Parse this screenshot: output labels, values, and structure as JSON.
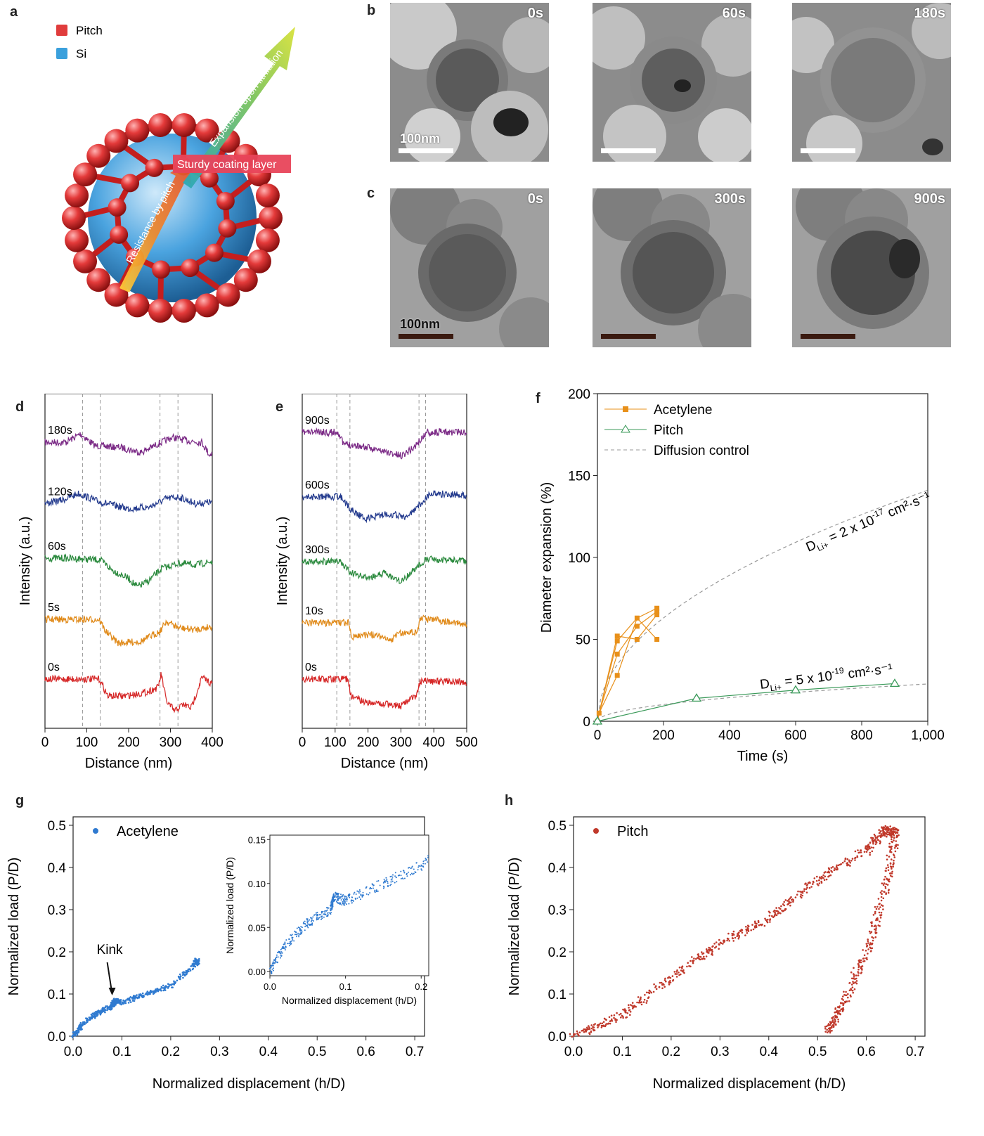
{
  "panels": {
    "a": {
      "letter": "a",
      "legend": [
        {
          "label": "Pitch",
          "color": "#e03c3c"
        },
        {
          "label": "Si",
          "color": "#3aa0dc"
        }
      ],
      "arrow_up_text": "Expansion upon lithiation",
      "coating_text": "Sturdy coating layer",
      "arrow_down_text": "Resistance by pitch"
    },
    "b": {
      "letter": "b",
      "times": [
        "0s",
        "60s",
        "180s"
      ],
      "scale_label": "100nm"
    },
    "c": {
      "letter": "c",
      "times": [
        "0s",
        "300s",
        "900s"
      ],
      "scale_label": "100nm"
    },
    "d": {
      "letter": "d"
    },
    "e": {
      "letter": "e"
    },
    "f": {
      "letter": "f"
    },
    "g": {
      "letter": "g"
    },
    "h": {
      "letter": "h"
    }
  },
  "chart_data": [
    {
      "id": "d",
      "type": "line",
      "xlabel": "Distance (nm)",
      "ylabel": "Intensity (a.u.)",
      "xlim": [
        0,
        400
      ],
      "xticks": [
        "0",
        "100",
        "200",
        "300",
        "400"
      ],
      "dashed_x": [
        90,
        132,
        275,
        318
      ],
      "series": [
        {
          "name": "180s",
          "color": "#7b2a86",
          "points": [
            [
              0,
              1.0
            ],
            [
              50,
              1.0
            ],
            [
              85,
              1.25
            ],
            [
              120,
              0.9
            ],
            [
              180,
              0.85
            ],
            [
              230,
              0.7
            ],
            [
              270,
              0.95
            ],
            [
              305,
              1.15
            ],
            [
              340,
              1.05
            ],
            [
              375,
              1.0
            ],
            [
              395,
              0.6
            ],
            [
              400,
              0.75
            ]
          ]
        },
        {
          "name": "120s",
          "color": "#243b8e",
          "points": [
            [
              0,
              1.0
            ],
            [
              40,
              1.1
            ],
            [
              80,
              1.3
            ],
            [
              130,
              1.05
            ],
            [
              200,
              0.85
            ],
            [
              250,
              0.9
            ],
            [
              290,
              1.15
            ],
            [
              320,
              1.2
            ],
            [
              360,
              1.0
            ],
            [
              400,
              1.05
            ]
          ]
        },
        {
          "name": "60s",
          "color": "#2b8a3e",
          "points": [
            [
              0,
              1.2
            ],
            [
              50,
              1.2
            ],
            [
              132,
              1.15
            ],
            [
              160,
              0.85
            ],
            [
              200,
              0.6
            ],
            [
              220,
              0.35
            ],
            [
              245,
              0.5
            ],
            [
              280,
              0.9
            ],
            [
              320,
              1.05
            ],
            [
              360,
              1.0
            ],
            [
              400,
              1.1
            ]
          ]
        },
        {
          "name": "5s",
          "color": "#e08a1a",
          "points": [
            [
              0,
              1.2
            ],
            [
              130,
              1.2
            ],
            [
              145,
              0.85
            ],
            [
              175,
              0.5
            ],
            [
              230,
              0.55
            ],
            [
              275,
              0.85
            ],
            [
              290,
              1.15
            ],
            [
              320,
              0.95
            ],
            [
              360,
              0.9
            ],
            [
              400,
              1.0
            ]
          ]
        },
        {
          "name": "0s",
          "color": "#d62828",
          "points": [
            [
              0,
              1.25
            ],
            [
              130,
              1.25
            ],
            [
              150,
              0.75
            ],
            [
              190,
              0.75
            ],
            [
              240,
              0.85
            ],
            [
              270,
              1.0
            ],
            [
              278,
              1.4
            ],
            [
              290,
              0.6
            ],
            [
              310,
              0.3
            ],
            [
              330,
              0.5
            ],
            [
              350,
              0.4
            ],
            [
              375,
              1.3
            ],
            [
              395,
              1.15
            ],
            [
              400,
              1.1
            ]
          ]
        }
      ]
    },
    {
      "id": "e",
      "type": "line",
      "xlabel": "Distance (nm)",
      "ylabel": "Intensity (a.u.)",
      "xlim": [
        0,
        500
      ],
      "xticks": [
        "0",
        "100",
        "200",
        "300",
        "400",
        "500"
      ],
      "dashed_x": [
        105,
        145,
        355,
        375
      ],
      "series": [
        {
          "name": "900s",
          "color": "#7b2a86",
          "points": [
            [
              0,
              1.3
            ],
            [
              110,
              1.3
            ],
            [
              125,
              0.95
            ],
            [
              170,
              0.9
            ],
            [
              240,
              0.75
            ],
            [
              300,
              0.6
            ],
            [
              340,
              0.85
            ],
            [
              380,
              1.3
            ],
            [
              500,
              1.3
            ]
          ]
        },
        {
          "name": "600s",
          "color": "#243b8e",
          "points": [
            [
              0,
              1.2
            ],
            [
              120,
              1.2
            ],
            [
              145,
              0.85
            ],
            [
              190,
              0.55
            ],
            [
              260,
              0.7
            ],
            [
              320,
              0.6
            ],
            [
              360,
              1.0
            ],
            [
              390,
              1.3
            ],
            [
              500,
              1.25
            ]
          ]
        },
        {
          "name": "300s",
          "color": "#2b8a3e",
          "points": [
            [
              0,
              1.1
            ],
            [
              115,
              1.1
            ],
            [
              150,
              0.75
            ],
            [
              200,
              0.6
            ],
            [
              250,
              0.75
            ],
            [
              300,
              0.5
            ],
            [
              350,
              0.95
            ],
            [
              380,
              1.2
            ],
            [
              500,
              1.1
            ]
          ]
        },
        {
          "name": "10s",
          "color": "#e08a1a",
          "points": [
            [
              0,
              1.1
            ],
            [
              140,
              1.1
            ],
            [
              150,
              0.7
            ],
            [
              230,
              0.75
            ],
            [
              265,
              0.55
            ],
            [
              300,
              0.8
            ],
            [
              350,
              0.85
            ],
            [
              360,
              1.25
            ],
            [
              500,
              1.05
            ]
          ]
        },
        {
          "name": "0s",
          "color": "#d62828",
          "points": [
            [
              0,
              1.25
            ],
            [
              140,
              1.25
            ],
            [
              148,
              0.75
            ],
            [
              200,
              0.55
            ],
            [
              260,
              0.5
            ],
            [
              300,
              0.45
            ],
            [
              345,
              0.75
            ],
            [
              360,
              1.2
            ],
            [
              500,
              1.15
            ]
          ]
        }
      ]
    },
    {
      "id": "f",
      "type": "scatter",
      "xlabel": "Time (s)",
      "ylabel": "Diameter expansion (%)",
      "xlim": [
        0,
        1000
      ],
      "ylim": [
        0,
        200
      ],
      "xticks": [
        "0",
        "200",
        "400",
        "600",
        "800",
        "1,000"
      ],
      "yticks": [
        "0",
        "50",
        "100",
        "150",
        "200"
      ],
      "legend": [
        "Acetylene",
        "Pitch",
        "Diffusion control"
      ],
      "series": [
        {
          "name": "Acetylene",
          "color": "#e8901a",
          "points": [
            [
              0,
              0
            ],
            [
              5,
              5
            ],
            [
              60,
              28
            ],
            [
              60,
              41
            ],
            [
              60,
              49
            ],
            [
              60,
              52
            ],
            [
              120,
              50
            ],
            [
              120,
              58
            ],
            [
              120,
              63
            ],
            [
              180,
              50
            ],
            [
              180,
              65
            ],
            [
              180,
              67
            ],
            [
              180,
              69
            ]
          ]
        },
        {
          "name": "Pitch",
          "color": "#3b9a5a",
          "points": [
            [
              0,
              0
            ],
            [
              300,
              14
            ],
            [
              600,
              19
            ],
            [
              900,
              23
            ]
          ]
        }
      ],
      "fits": [
        {
          "label": "2 x 10",
          "exp": "-17",
          "k": 4.46
        },
        {
          "label": "5 x 10",
          "exp": "-19",
          "k": 0.72
        }
      ],
      "annotation_prefix": "D",
      "annotation_sub": "Li+",
      "annotation_units": "cm²·s⁻¹"
    },
    {
      "id": "g",
      "type": "scatter",
      "xlabel": "Normalized displacement (h/D)",
      "ylabel": "Normalized load (P/D)",
      "xlim": [
        0,
        0.72
      ],
      "ylim": [
        0,
        0.52
      ],
      "xticks": [
        "0.0",
        "0.1",
        "0.2",
        "0.3",
        "0.4",
        "0.5",
        "0.6",
        "0.7"
      ],
      "yticks": [
        "0.0",
        "0.1",
        "0.2",
        "0.3",
        "0.4",
        "0.5"
      ],
      "legend": [
        "Acetylene"
      ],
      "annotation": "Kink",
      "color": "#2f7ad0",
      "series": [
        {
          "name": "Acetylene",
          "points": [
            [
              0,
              0
            ],
            [
              0.02,
              0.03
            ],
            [
              0.05,
              0.055
            ],
            [
              0.08,
              0.07
            ],
            [
              0.085,
              0.085
            ],
            [
              0.1,
              0.08
            ],
            [
              0.15,
              0.1
            ],
            [
              0.2,
              0.12
            ],
            [
              0.25,
              0.17
            ],
            [
              0.255,
              0.18
            ]
          ]
        }
      ],
      "inset": {
        "xlabel": "Normalized displacement (h/D)",
        "ylabel": "Normalized load (P/D)",
        "xlim": [
          0,
          0.21
        ],
        "ylim": [
          -0.005,
          0.155
        ],
        "xticks": [
          "0.0",
          "0.1",
          "0.2"
        ],
        "yticks": [
          "0.00",
          "0.05",
          "0.10",
          "0.15"
        ]
      }
    },
    {
      "id": "h",
      "type": "scatter",
      "xlabel": "Normalized displacement (h/D)",
      "ylabel": "Normalized load (P/D)",
      "xlim": [
        0,
        0.72
      ],
      "ylim": [
        0,
        0.52
      ],
      "xticks": [
        "0.0",
        "0.1",
        "0.2",
        "0.3",
        "0.4",
        "0.5",
        "0.6",
        "0.7"
      ],
      "yticks": [
        "0.0",
        "0.1",
        "0.2",
        "0.3",
        "0.4",
        "0.5"
      ],
      "legend": [
        "Pitch"
      ],
      "color": "#c0392b",
      "series": [
        {
          "name": "Pitch",
          "points": [
            [
              0,
              0
            ],
            [
              0.1,
              0.05
            ],
            [
              0.2,
              0.14
            ],
            [
              0.3,
              0.22
            ],
            [
              0.4,
              0.28
            ],
            [
              0.5,
              0.37
            ],
            [
              0.6,
              0.44
            ],
            [
              0.64,
              0.49
            ],
            [
              0.66,
              0.48
            ],
            [
              0.64,
              0.35
            ],
            [
              0.6,
              0.2
            ],
            [
              0.55,
              0.07
            ],
            [
              0.52,
              0.01
            ]
          ]
        }
      ]
    }
  ]
}
